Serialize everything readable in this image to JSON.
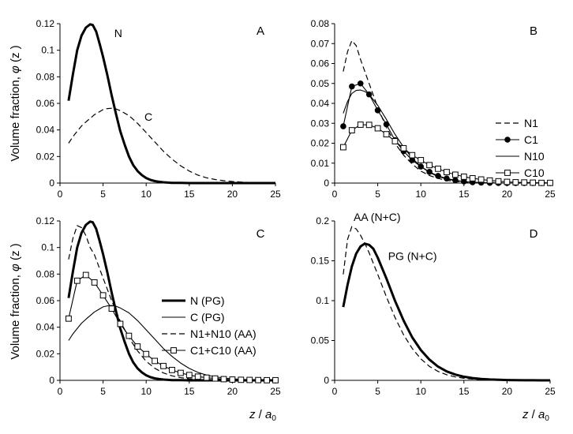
{
  "figure": {
    "ylabel_prefix": "Volume fraction, ",
    "ylabel_phi": "φ",
    "ylabel_suffix": " (z )",
    "xlabel_z": "z",
    "xlabel_slash": " / ",
    "xlabel_a": "a",
    "xlabel_sub": "0"
  },
  "chart_data": [
    {
      "panel": "A",
      "type": "line",
      "xlim": [
        0,
        25
      ],
      "ylim": [
        0,
        0.12
      ],
      "xticks": [
        0,
        5,
        10,
        15,
        20,
        25
      ],
      "yticks": [
        0,
        0.02,
        0.04,
        0.06,
        0.08,
        0.1,
        0.12
      ],
      "ytick_labels": [
        "0",
        "0.02",
        "0.04",
        "0.06",
        "0.08",
        "0.1",
        "0.12"
      ],
      "legend": false,
      "series": [
        {
          "name": "N",
          "style": "thick",
          "annotation": {
            "text": "N",
            "x": 6.3,
            "y": 0.11
          },
          "x": [
            1,
            1.5,
            2,
            2.5,
            3,
            3.5,
            3.8,
            4.2,
            4.6,
            5,
            5.5,
            6,
            6.5,
            7,
            7.5,
            8,
            8.5,
            9,
            9.5,
            10,
            10.5,
            11,
            11.5,
            12,
            13,
            14,
            15,
            16,
            18,
            20,
            25
          ],
          "y": [
            0.062,
            0.082,
            0.1,
            0.111,
            0.117,
            0.1195,
            0.119,
            0.114,
            0.105,
            0.095,
            0.081,
            0.066,
            0.052,
            0.039,
            0.029,
            0.02,
            0.0135,
            0.009,
            0.006,
            0.0038,
            0.0024,
            0.0015,
            0.001,
            0.0006,
            0.0002,
            0.0001,
            0,
            0,
            0,
            0,
            0
          ]
        },
        {
          "name": "C",
          "style": "dashed",
          "annotation": {
            "text": "C",
            "x": 9.8,
            "y": 0.047
          },
          "x": [
            1,
            1.5,
            2,
            2.5,
            3,
            4,
            5,
            5.5,
            6,
            6.5,
            7,
            8,
            9,
            10,
            11,
            12,
            13,
            14,
            15,
            16,
            17,
            18,
            19,
            20,
            21,
            22,
            23,
            24,
            25
          ],
          "y": [
            0.03,
            0.035,
            0.039,
            0.043,
            0.046,
            0.0515,
            0.0553,
            0.0561,
            0.0563,
            0.0558,
            0.0545,
            0.0508,
            0.045,
            0.038,
            0.031,
            0.024,
            0.018,
            0.013,
            0.009,
            0.006,
            0.004,
            0.0027,
            0.0018,
            0.0012,
            0.0008,
            0.0005,
            0.0003,
            0.0002,
            0.0001
          ]
        }
      ]
    },
    {
      "panel": "B",
      "type": "line",
      "xlim": [
        0,
        25
      ],
      "ylim": [
        0,
        0.08
      ],
      "xticks": [
        0,
        5,
        10,
        15,
        20,
        25
      ],
      "yticks": [
        0,
        0.01,
        0.02,
        0.03,
        0.04,
        0.05,
        0.06,
        0.07,
        0.08
      ],
      "ytick_labels": [
        "0",
        "0.01",
        "0.02",
        "0.03",
        "0.04",
        "0.05",
        "0.06",
        "0.07",
        "0.08"
      ],
      "legend": true,
      "series": [
        {
          "name": "N1",
          "style": "dashed",
          "x": [
            1,
            1.5,
            2,
            2.5,
            3,
            4,
            5,
            6,
            7,
            8,
            9,
            10,
            11,
            12,
            13,
            14,
            15,
            16,
            18,
            20,
            25
          ],
          "y": [
            0.056,
            0.066,
            0.0715,
            0.069,
            0.062,
            0.05,
            0.038,
            0.028,
            0.02,
            0.014,
            0.0095,
            0.006,
            0.0038,
            0.0023,
            0.0014,
            0.0008,
            0.0005,
            0.0003,
            0.0001,
            0,
            0
          ]
        },
        {
          "name": "C1",
          "style": "filled-circle",
          "x": [
            1,
            2,
            3,
            4,
            5,
            6,
            7,
            8,
            9,
            10,
            11,
            12,
            13,
            14,
            15,
            16,
            17,
            18,
            19,
            20,
            21,
            22,
            23,
            24,
            25
          ],
          "y": [
            0.0285,
            0.0485,
            0.05,
            0.0445,
            0.0365,
            0.0295,
            0.0215,
            0.016,
            0.0115,
            0.0083,
            0.0056,
            0.0036,
            0.0023,
            0.0014,
            0.0008,
            0.0004,
            0.0002,
            0.0001,
            0,
            0,
            0,
            0,
            0,
            0,
            0
          ]
        },
        {
          "name": "N10",
          "style": "solid",
          "x": [
            1,
            1.5,
            2,
            2.5,
            3,
            3.5,
            4,
            5,
            6,
            7,
            8,
            9,
            10,
            11,
            12,
            13,
            14,
            15,
            16,
            18,
            20,
            25
          ],
          "y": [
            0.035,
            0.041,
            0.045,
            0.0465,
            0.0467,
            0.046,
            0.0445,
            0.039,
            0.032,
            0.0245,
            0.018,
            0.0125,
            0.0083,
            0.0053,
            0.0033,
            0.002,
            0.0012,
            0.0007,
            0.0004,
            0.0001,
            0,
            0
          ]
        },
        {
          "name": "C10",
          "style": "open-square",
          "x": [
            1,
            2,
            3,
            4,
            5,
            6,
            7,
            8,
            9,
            10,
            11,
            12,
            13,
            14,
            15,
            16,
            17,
            18,
            19,
            20,
            21,
            22,
            23,
            24,
            25
          ],
          "y": [
            0.018,
            0.0265,
            0.0293,
            0.0292,
            0.0275,
            0.0245,
            0.021,
            0.0175,
            0.014,
            0.0115,
            0.009,
            0.0072,
            0.0055,
            0.0042,
            0.0032,
            0.0024,
            0.0018,
            0.0013,
            0.0009,
            0.0006,
            0.0004,
            0.0003,
            0.0002,
            0.0001,
            0.0001
          ]
        }
      ]
    },
    {
      "panel": "C",
      "type": "line",
      "xlim": [
        0,
        25
      ],
      "ylim": [
        0,
        0.12
      ],
      "xticks": [
        0,
        5,
        10,
        15,
        20,
        25
      ],
      "yticks": [
        0,
        0.02,
        0.04,
        0.06,
        0.08,
        0.1,
        0.12
      ],
      "ytick_labels": [
        "0",
        "0.02",
        "0.04",
        "0.06",
        "0.08",
        "0.1",
        "0.12"
      ],
      "legend": true,
      "series": [
        {
          "name": "N (PG)",
          "style": "thick",
          "x": [
            1,
            1.5,
            2,
            2.5,
            3,
            3.5,
            3.8,
            4.2,
            4.6,
            5,
            5.5,
            6,
            6.5,
            7,
            7.5,
            8,
            8.5,
            9,
            9.5,
            10,
            10.5,
            11,
            11.5,
            12,
            13,
            14,
            15,
            16,
            18,
            20,
            25
          ],
          "y": [
            0.062,
            0.082,
            0.1,
            0.111,
            0.117,
            0.1195,
            0.119,
            0.114,
            0.105,
            0.095,
            0.081,
            0.066,
            0.052,
            0.039,
            0.029,
            0.02,
            0.0135,
            0.009,
            0.006,
            0.0038,
            0.0024,
            0.0015,
            0.001,
            0.0006,
            0.0002,
            0.0001,
            0,
            0,
            0,
            0,
            0
          ]
        },
        {
          "name": "C (PG)",
          "style": "solid",
          "x": [
            1,
            1.5,
            2,
            2.5,
            3,
            4,
            5,
            5.5,
            6,
            6.5,
            7,
            8,
            9,
            10,
            11,
            12,
            13,
            14,
            15,
            16,
            17,
            18,
            19,
            20,
            21,
            22,
            23,
            24,
            25
          ],
          "y": [
            0.03,
            0.035,
            0.039,
            0.043,
            0.046,
            0.0515,
            0.0553,
            0.0561,
            0.0563,
            0.0558,
            0.0545,
            0.0508,
            0.045,
            0.038,
            0.031,
            0.024,
            0.018,
            0.013,
            0.009,
            0.006,
            0.004,
            0.0027,
            0.0018,
            0.0012,
            0.0008,
            0.0005,
            0.0003,
            0.0002,
            0.0001
          ]
        },
        {
          "name": "N1+N10 (AA)",
          "style": "dashed",
          "x": [
            1,
            1.5,
            2,
            2.5,
            3,
            3.5,
            4,
            5,
            6,
            7,
            8,
            9,
            10,
            11,
            12,
            13,
            14,
            15,
            16,
            18,
            20,
            25
          ],
          "y": [
            0.091,
            0.107,
            0.1165,
            0.115,
            0.109,
            0.1,
            0.0945,
            0.077,
            0.06,
            0.0445,
            0.032,
            0.0222,
            0.0143,
            0.0091,
            0.0056,
            0.0034,
            0.002,
            0.0012,
            0.0007,
            0.0002,
            0,
            0
          ]
        },
        {
          "name": "C1+C10 (AA)",
          "style": "open-square",
          "x": [
            1,
            2,
            3,
            4,
            5,
            6,
            7,
            8,
            9,
            10,
            11,
            12,
            13,
            14,
            15,
            16,
            17,
            18,
            19,
            20,
            21,
            22,
            23,
            24,
            25
          ],
          "y": [
            0.0465,
            0.075,
            0.0793,
            0.0737,
            0.064,
            0.054,
            0.0425,
            0.0335,
            0.0255,
            0.0198,
            0.0146,
            0.0108,
            0.0078,
            0.0056,
            0.004,
            0.0028,
            0.002,
            0.0014,
            0.0009,
            0.0006,
            0.0004,
            0.0003,
            0.0002,
            0.0001,
            0.0001
          ]
        }
      ]
    },
    {
      "panel": "D",
      "type": "line",
      "xlim": [
        0,
        25
      ],
      "ylim": [
        0,
        0.2
      ],
      "xticks": [
        0,
        5,
        10,
        15,
        20,
        25
      ],
      "yticks": [
        0,
        0.05,
        0.1,
        0.15,
        0.2
      ],
      "ytick_labels": [
        "0",
        "0.05",
        "0.1",
        "0.15",
        "0.2"
      ],
      "legend": false,
      "series": [
        {
          "name": "AA (N+C)",
          "style": "dashed",
          "annotation": {
            "text": "AA (N+C)",
            "x": 2.2,
            "y": 0.2
          },
          "x": [
            1,
            1.5,
            2,
            2.5,
            3,
            3.5,
            4,
            5,
            6,
            7,
            8,
            9,
            10,
            11,
            12,
            13,
            14,
            15,
            16,
            17,
            18,
            19,
            20,
            21,
            22,
            23,
            24,
            25
          ],
          "y": [
            0.133,
            0.177,
            0.193,
            0.19,
            0.182,
            0.172,
            0.16,
            0.133,
            0.105,
            0.079,
            0.057,
            0.04,
            0.027,
            0.0175,
            0.0112,
            0.007,
            0.0043,
            0.0026,
            0.0016,
            0.001,
            0.0006,
            0.0004,
            0.0002,
            0.0001,
            0.0001,
            0,
            0,
            0
          ]
        },
        {
          "name": "PG (N+C)",
          "style": "thick",
          "annotation": {
            "text": "PG (N+C)",
            "x": 6.2,
            "y": 0.151
          },
          "x": [
            1,
            1.5,
            2,
            2.5,
            3,
            3.5,
            4,
            4.5,
            5,
            6,
            7,
            8,
            9,
            10,
            11,
            12,
            13,
            14,
            15,
            16,
            17,
            18,
            19,
            20,
            21,
            22,
            23,
            24,
            25
          ],
          "y": [
            0.092,
            0.12,
            0.143,
            0.159,
            0.168,
            0.1715,
            0.17,
            0.165,
            0.154,
            0.128,
            0.1,
            0.075,
            0.054,
            0.038,
            0.026,
            0.0172,
            0.0112,
            0.0072,
            0.0046,
            0.0029,
            0.0018,
            0.0011,
            0.0007,
            0.0004,
            0.0002,
            0.0001,
            0.0001,
            0,
            0
          ]
        }
      ]
    }
  ]
}
